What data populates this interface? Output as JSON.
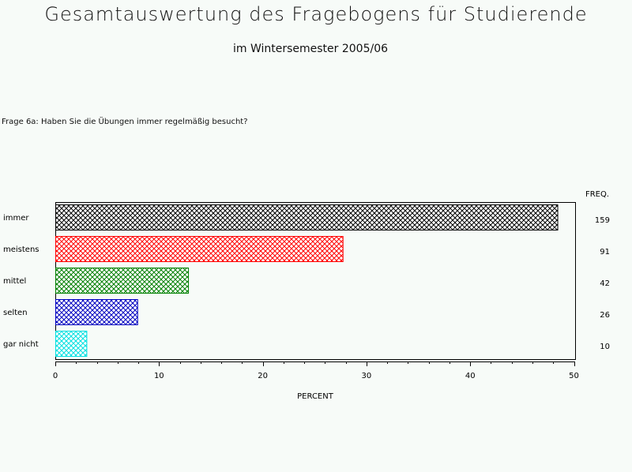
{
  "page": {
    "title": "Gesamtauswertung des Fragebogens für Studierende",
    "subtitle": "im Wintersemester 2005/06",
    "question": "Frage 6a: Haben Sie die Übungen immer regelmäßig besucht?"
  },
  "chart_data": {
    "type": "bar",
    "orientation": "horizontal",
    "categories": [
      "immer",
      "meistens",
      "mittel",
      "selten",
      "gar nicht"
    ],
    "values": [
      48.4,
      27.7,
      12.8,
      7.9,
      3.0
    ],
    "freq": [
      159,
      91,
      42,
      26,
      10
    ],
    "freq_label": "FREQ.",
    "xlabel": "PERCENT",
    "xlim": [
      0,
      50
    ],
    "xticks": [
      0,
      10,
      20,
      30,
      40,
      50
    ],
    "minor_ticks_per_major": 5,
    "fill_pattern": "crosshatch",
    "colors": [
      "#000000",
      "#ff0000",
      "#008000",
      "#0000c0",
      "#00e0e0"
    ],
    "grid": false
  }
}
